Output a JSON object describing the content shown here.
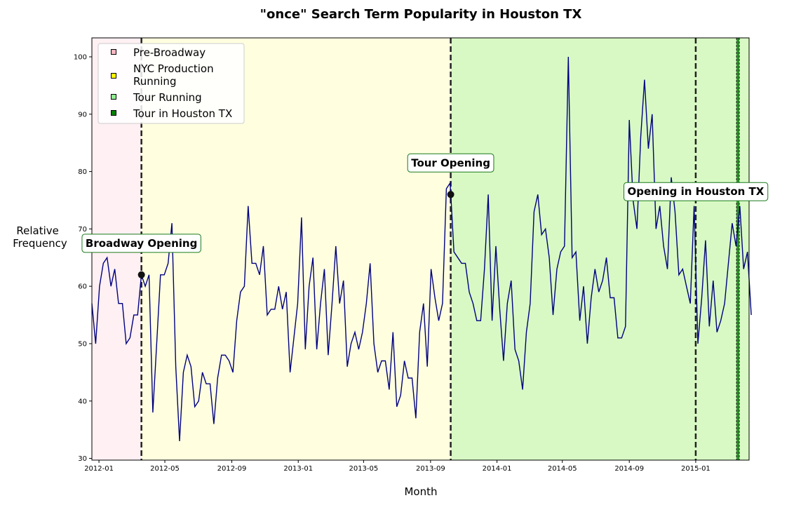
{
  "chart_data": {
    "type": "line",
    "title": "\"once\" Search Term Popularity in Houston TX",
    "xlabel": "Month",
    "ylabel": [
      "Relative",
      "Frequency"
    ],
    "x_range": [
      "2011-12-19",
      "2015-04-09"
    ],
    "ylim": [
      29.7,
      103.3
    ],
    "y_ticks": [
      30,
      40,
      50,
      60,
      70,
      80,
      90,
      100
    ],
    "x_ticks": [
      {
        "date": "2012-01-01",
        "label": "2012-01"
      },
      {
        "date": "2012-05-01",
        "label": "2012-05"
      },
      {
        "date": "2012-09-01",
        "label": "2012-09"
      },
      {
        "date": "2013-01-01",
        "label": "2013-01"
      },
      {
        "date": "2013-05-01",
        "label": "2013-05"
      },
      {
        "date": "2013-09-01",
        "label": "2013-09"
      },
      {
        "date": "2014-01-01",
        "label": "2014-01"
      },
      {
        "date": "2014-05-01",
        "label": "2014-05"
      },
      {
        "date": "2014-09-01",
        "label": "2014-09"
      },
      {
        "date": "2015-01-01",
        "label": "2015-01"
      }
    ],
    "grid": false,
    "legend_position": "top-left",
    "series": [
      {
        "color": "#000080",
        "start_date": "2011-12-19",
        "interval_days": 7,
        "values": [
          57,
          50,
          60,
          64,
          65,
          60,
          63,
          57,
          57,
          50,
          51,
          55,
          55,
          62,
          60,
          62,
          38,
          50,
          62,
          62,
          64,
          71,
          46,
          33,
          45,
          48,
          46,
          39,
          40,
          45,
          43,
          43,
          36,
          44,
          48,
          48,
          47,
          45,
          54,
          59,
          60,
          74,
          64,
          64,
          62,
          67,
          55,
          56,
          56,
          60,
          56,
          59,
          45,
          51,
          57,
          72,
          49,
          60,
          65,
          49,
          57,
          63,
          48,
          57,
          67,
          57,
          61,
          46,
          50,
          52,
          49,
          52,
          57,
          64,
          50,
          45,
          47,
          47,
          42,
          52,
          39,
          41,
          47,
          44,
          44,
          37,
          52,
          57,
          46,
          63,
          58,
          54,
          57,
          77,
          78,
          66,
          65,
          64,
          64,
          59,
          57,
          54,
          54,
          63,
          76,
          54,
          67,
          56,
          47,
          57,
          61,
          49,
          47,
          42,
          52,
          57,
          73,
          76,
          69,
          70,
          65,
          55,
          63,
          66,
          67,
          100,
          65,
          66,
          54,
          60,
          50,
          58,
          63,
          59,
          61,
          65,
          58,
          58,
          51,
          51,
          53,
          89,
          75,
          70,
          86,
          96,
          84,
          90,
          70,
          74,
          67,
          63,
          79,
          73,
          62,
          63,
          60,
          57,
          74,
          50,
          58,
          68,
          53,
          61,
          52,
          54,
          57,
          64,
          71,
          67,
          74,
          63,
          66,
          55
        ]
      }
    ],
    "periods": [
      {
        "label": "Pre-Broadway",
        "start": "2011-12-19",
        "end": "2012-03-19",
        "color": "#ffb6c1",
        "opacity": 0.2
      },
      {
        "label": "NYC Production Running",
        "start": "2012-03-19",
        "end": "2015-04-09",
        "color": "#ffff00",
        "opacity": 0.12
      },
      {
        "label": "Tour Running",
        "start": "2013-10-08",
        "end": "2015-04-09",
        "color": "#90ee90",
        "opacity": 0.35
      },
      {
        "label": "Tour in Houston TX",
        "start": "2015-03-17",
        "end": "2015-03-22",
        "color": "#008000",
        "opacity": 0.8
      }
    ],
    "legend": [
      {
        "label": "Pre-Broadway",
        "color": "#ffb6c1"
      },
      {
        "label": [
          "NYC Production",
          "Running"
        ],
        "color": "#ffff00"
      },
      {
        "label": "Tour Running",
        "color": "#90ee90"
      },
      {
        "label": "Tour in Houston TX",
        "color": "#008000"
      }
    ],
    "events": [
      {
        "date": "2012-03-19",
        "y": 62,
        "label": "Broadway Opening",
        "marker": true,
        "label_y": 67.5
      },
      {
        "date": "2013-10-08",
        "y": 76,
        "label": "Tour Opening",
        "marker": true,
        "label_y": 81.5
      },
      {
        "date": "2015-01-01",
        "y": 72,
        "label": "Opening in Houston TX",
        "marker": false,
        "label_y": 76.5
      }
    ],
    "colors": {
      "line": "#000080",
      "event_line": "#222222",
      "annotation_border": "#1a7a1a",
      "marker": "#111111"
    }
  }
}
